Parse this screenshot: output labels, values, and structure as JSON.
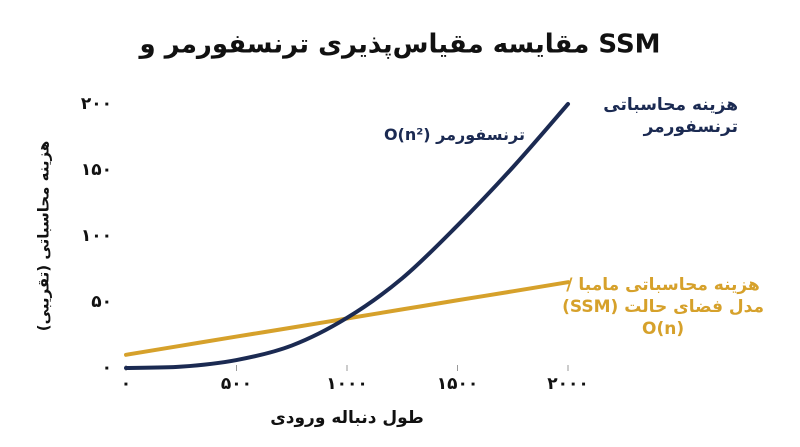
{
  "chart_data": {
    "type": "line",
    "title": "مقایسه مقیاس‌پذیری ترنسفورمر و SSM",
    "x_label": "طول دنباله ورودی",
    "y_label": "هزینه محاسباتی (تقریبی)",
    "x": [
      0,
      250,
      500,
      750,
      1000,
      1250,
      1500,
      1750,
      2000
    ],
    "series": [
      {
        "name": "هزینه محاسباتی\nترنسفورمر",
        "color": "#1b2a52",
        "values": [
          0,
          1,
          6,
          17,
          38,
          68,
          108,
          152,
          200
        ]
      },
      {
        "name": "هزینه محاسباتی مامبا /\nمدل فضای حالت (SSM)\nO(n)",
        "color": "#d6a12b",
        "values": [
          10,
          16.9,
          23.8,
          30.6,
          37.5,
          44.4,
          51.3,
          58.1,
          65
        ]
      }
    ],
    "annotations": [
      {
        "text": "ترنسفورمر O(n²)",
        "color": "#1b2a52"
      }
    ],
    "xlim": [
      0,
      2000
    ],
    "xticks": [
      {
        "value": 0,
        "label": "۰"
      },
      {
        "value": 500,
        "label": "۵۰۰"
      },
      {
        "value": 1000,
        "label": "۱۰۰۰"
      },
      {
        "value": 1500,
        "label": "۱۵۰۰"
      },
      {
        "value": 2000,
        "label": "۲۰۰۰"
      }
    ],
    "ylim": [
      0,
      200
    ],
    "yticks": [
      {
        "value": 0,
        "label": "۰"
      },
      {
        "value": 50,
        "label": "۵۰"
      },
      {
        "value": 100,
        "label": "۱۰۰"
      },
      {
        "value": 150,
        "label": "۱۵۰"
      },
      {
        "value": 200,
        "label": "۲۰۰"
      }
    ]
  }
}
